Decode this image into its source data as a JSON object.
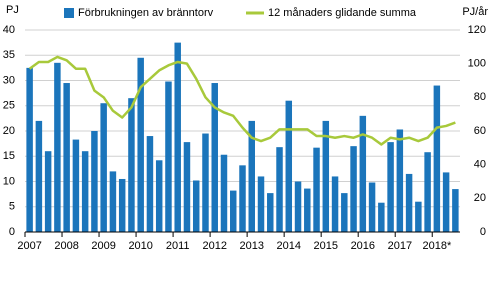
{
  "chart_data": {
    "type": "bar_line",
    "y_label": "PJ",
    "y2_label": "PJ/år",
    "categories": [
      "2007",
      null,
      null,
      null,
      "2008",
      null,
      null,
      null,
      "2009",
      null,
      null,
      null,
      "2010",
      null,
      null,
      null,
      "2011",
      null,
      null,
      null,
      "2012",
      null,
      null,
      null,
      "2013",
      null,
      null,
      null,
      "2014",
      null,
      null,
      null,
      "2015",
      null,
      null,
      null,
      "2016",
      null,
      null,
      null,
      "2017",
      null,
      null,
      null,
      "2018*",
      null,
      null
    ],
    "series": [
      {
        "name": "Förbrukningen av bränntorv",
        "color": "#1b75bb",
        "values": [
          32.5,
          22,
          16,
          33.5,
          29.5,
          18.3,
          16,
          20,
          25.5,
          12,
          10.5,
          26.5,
          34.5,
          19,
          14.2,
          29.8,
          37.5,
          17.8,
          10.2,
          19.5,
          29.5,
          15.3,
          8.2,
          13.2,
          22,
          11,
          7.7,
          16.8,
          26,
          10,
          8.6,
          16.7,
          22,
          11,
          7.7,
          17,
          23,
          9.8,
          5.8,
          17.8,
          20.3,
          11.5,
          6,
          15.8,
          29,
          11.8,
          8.5
        ]
      },
      {
        "name": "12 månaders glidande summa",
        "color": "#a8c93b",
        "axis": "y2",
        "values": [
          97,
          101,
          101,
          104,
          102,
          97,
          97,
          84,
          80,
          72,
          68,
          74,
          86,
          91,
          96,
          99,
          101,
          100,
          91,
          80,
          74,
          71,
          69,
          62,
          56,
          54,
          56,
          61,
          61,
          61,
          61,
          57,
          57,
          56,
          57,
          56,
          58,
          56,
          52,
          56,
          55,
          56,
          54,
          56,
          62,
          63,
          65
        ]
      }
    ],
    "ylim": [
      0,
      40
    ],
    "yticks": [
      0,
      5,
      10,
      15,
      20,
      25,
      30,
      35,
      40
    ],
    "y2lim": [
      0,
      120
    ],
    "y2ticks": [
      0,
      20,
      40,
      60,
      80,
      100,
      120
    ],
    "grid": true
  }
}
